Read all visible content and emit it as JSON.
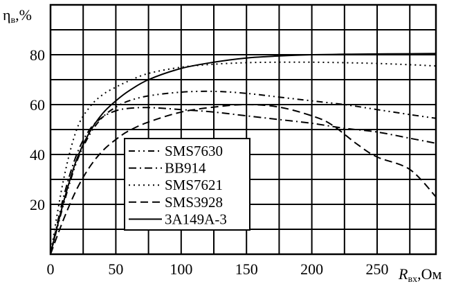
{
  "chart_data": {
    "type": "line",
    "ylabel": {
      "main": "η",
      "sub": "в",
      "unit": ",%"
    },
    "xlabel": {
      "main": "R",
      "sub": "вх",
      "unit": ",Ом"
    },
    "xlim": [
      0,
      295
    ],
    "ylim": [
      0,
      100
    ],
    "x_ticks": [
      0,
      50,
      100,
      150,
      200,
      250
    ],
    "y_ticks": [
      20,
      40,
      60,
      80
    ],
    "grid": true,
    "legend": "inside, center-left",
    "series": [
      {
        "name": "SMS7630",
        "dash": "9 5 2 5 2 5",
        "values": [
          [
            0,
            0
          ],
          [
            10,
            20
          ],
          [
            20,
            37
          ],
          [
            30,
            48
          ],
          [
            40,
            55
          ],
          [
            50,
            59
          ],
          [
            60,
            61.5
          ],
          [
            75,
            63.5
          ],
          [
            100,
            65
          ],
          [
            125,
            65.3
          ],
          [
            150,
            64.5
          ],
          [
            175,
            63
          ],
          [
            200,
            61.5
          ],
          [
            225,
            60
          ],
          [
            250,
            58
          ],
          [
            275,
            56
          ],
          [
            295,
            54.5
          ]
        ]
      },
      {
        "name": "BB914",
        "dash": "11 5 2 5",
        "values": [
          [
            0,
            0
          ],
          [
            10,
            23
          ],
          [
            20,
            40
          ],
          [
            30,
            50
          ],
          [
            40,
            55
          ],
          [
            50,
            57.5
          ],
          [
            60,
            58.5
          ],
          [
            75,
            58.8
          ],
          [
            100,
            58
          ],
          [
            125,
            57
          ],
          [
            150,
            55.5
          ],
          [
            175,
            54
          ],
          [
            200,
            52.5
          ],
          [
            225,
            50.5
          ],
          [
            250,
            49
          ],
          [
            275,
            46.5
          ],
          [
            295,
            44.5
          ]
        ]
      },
      {
        "name": "SMS7621",
        "dash": "2 5",
        "values": [
          [
            0,
            0
          ],
          [
            10,
            30
          ],
          [
            20,
            50
          ],
          [
            30,
            59
          ],
          [
            40,
            64
          ],
          [
            50,
            67
          ],
          [
            60,
            69.5
          ],
          [
            75,
            72.5
          ],
          [
            100,
            75
          ],
          [
            125,
            76.2
          ],
          [
            150,
            76.8
          ],
          [
            175,
            77
          ],
          [
            200,
            77
          ],
          [
            225,
            76.8
          ],
          [
            250,
            76.5
          ],
          [
            275,
            76
          ],
          [
            295,
            75.5
          ]
        ]
      },
      {
        "name": "SMS3928",
        "dash": "11 6",
        "values": [
          [
            0,
            0
          ],
          [
            10,
            14
          ],
          [
            20,
            26
          ],
          [
            30,
            35
          ],
          [
            40,
            41.5
          ],
          [
            50,
            46
          ],
          [
            60,
            49.5
          ],
          [
            75,
            53
          ],
          [
            100,
            57
          ],
          [
            125,
            59
          ],
          [
            150,
            60
          ],
          [
            175,
            59
          ],
          [
            200,
            55.5
          ],
          [
            215,
            52
          ],
          [
            235,
            44
          ],
          [
            250,
            39
          ],
          [
            275,
            34
          ],
          [
            295,
            23
          ]
        ]
      },
      {
        "name": "3А149А-3",
        "dash": "",
        "values": [
          [
            0,
            0
          ],
          [
            10,
            21
          ],
          [
            20,
            38
          ],
          [
            30,
            49
          ],
          [
            40,
            56.5
          ],
          [
            50,
            61.5
          ],
          [
            60,
            65.5
          ],
          [
            75,
            70
          ],
          [
            100,
            74.5
          ],
          [
            125,
            77
          ],
          [
            150,
            78.7
          ],
          [
            175,
            79.5
          ],
          [
            200,
            80
          ],
          [
            225,
            80.2
          ],
          [
            250,
            80.3
          ],
          [
            275,
            80.4
          ],
          [
            295,
            80.5
          ]
        ]
      }
    ]
  }
}
